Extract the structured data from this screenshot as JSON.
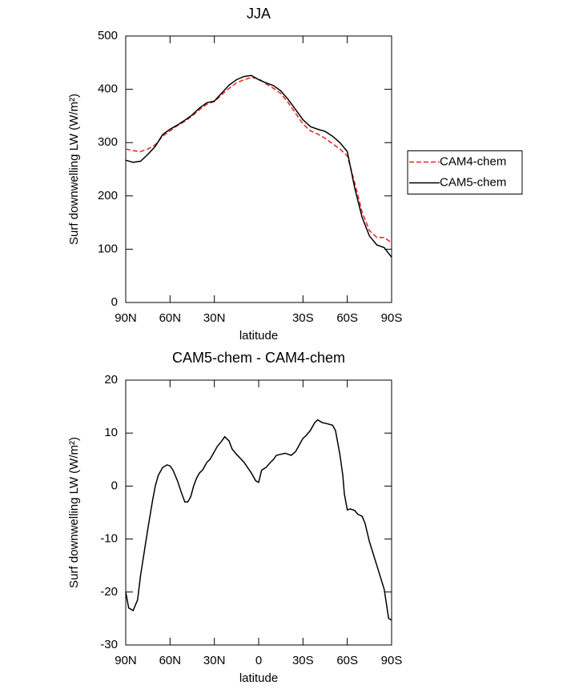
{
  "chart_data": [
    {
      "type": "line",
      "title": "JJA",
      "x_label": "latitude",
      "y_label": "Surf downwelling LW (W/m²)",
      "x": [
        90,
        85,
        80,
        75,
        70,
        65,
        60,
        55,
        50,
        45,
        40,
        35,
        30,
        25,
        20,
        15,
        10,
        5,
        0,
        -5,
        -10,
        -15,
        -20,
        -25,
        -30,
        -35,
        -40,
        -45,
        -50,
        -55,
        -60,
        -65,
        -70,
        -75,
        -80,
        -85,
        -90
      ],
      "series": [
        {
          "name": "CAM4-chem",
          "color": "#e8221f",
          "dash": true,
          "values": [
            288,
            285,
            283,
            288,
            296,
            312,
            322,
            332,
            340,
            350,
            362,
            372,
            377,
            390,
            402,
            412,
            418,
            422,
            420,
            410,
            402,
            392,
            375,
            355,
            335,
            322,
            316,
            308,
            298,
            288,
            275,
            225,
            170,
            135,
            122,
            122,
            112
          ]
        },
        {
          "name": "CAM5-chem",
          "color": "#000000",
          "dash": false,
          "values": [
            267,
            263,
            265,
            278,
            293,
            315,
            325,
            333,
            342,
            352,
            365,
            375,
            378,
            393,
            408,
            418,
            424,
            426,
            418,
            412,
            407,
            397,
            381,
            362,
            343,
            330,
            325,
            321,
            312,
            300,
            283,
            215,
            160,
            125,
            108,
            103,
            85
          ]
        }
      ],
      "xlim": [
        90,
        -90
      ],
      "xticks": [
        {
          "value": 90,
          "label": "90N"
        },
        {
          "value": 60,
          "label": "60N"
        },
        {
          "value": 30,
          "label": "30N"
        },
        {
          "value": -30,
          "label": "30S"
        },
        {
          "value": -60,
          "label": "60S"
        },
        {
          "value": -90,
          "label": "90S"
        }
      ],
      "ylim": [
        0,
        500
      ],
      "yticks": [
        0,
        100,
        200,
        300,
        400,
        500
      ],
      "legend": "right"
    },
    {
      "type": "line",
      "title": "CAM5-chem - CAM4-chem",
      "x_label": "latitude",
      "y_label": "Surf downwelling LW (W/m²)",
      "x": [
        90,
        88,
        85,
        82,
        80,
        75,
        72,
        70,
        68,
        65,
        62,
        60,
        58,
        55,
        52,
        50,
        48,
        46,
        44,
        42,
        40,
        38,
        35,
        33,
        30,
        28,
        25,
        23,
        20,
        18,
        15,
        10,
        5,
        2,
        0,
        -2,
        -5,
        -8,
        -10,
        -12,
        -15,
        -18,
        -20,
        -22,
        -25,
        -28,
        -30,
        -32,
        -35,
        -38,
        -40,
        -43,
        -46,
        -50,
        -52,
        -55,
        -57,
        -58,
        -60,
        -62,
        -65,
        -67,
        -70,
        -72,
        -75,
        -80,
        -85,
        -88,
        -90
      ],
      "values": [
        -20,
        -23,
        -23.5,
        -21.5,
        -17,
        -8,
        -3,
        0,
        2,
        3.5,
        4,
        3.8,
        3,
        1,
        -1.5,
        -3,
        -3,
        -2,
        0,
        1.5,
        2.5,
        3,
        4.5,
        5,
        6.5,
        7.5,
        8.5,
        9.3,
        8.5,
        7,
        6,
        4.5,
        2.5,
        1,
        0.7,
        3,
        3.5,
        4.5,
        5,
        5.8,
        6,
        6.2,
        6,
        5.8,
        6.5,
        8,
        9,
        9.5,
        10.5,
        12,
        12.5,
        12,
        11.8,
        11.5,
        10.5,
        6,
        2,
        -1.5,
        -4.5,
        -4.3,
        -4.6,
        -5.3,
        -5.7,
        -7,
        -10.5,
        -15,
        -19.5,
        -25,
        -25.3
      ],
      "color": "#000000",
      "xlim": [
        90,
        -90
      ],
      "xticks": [
        {
          "value": 90,
          "label": "90N"
        },
        {
          "value": 60,
          "label": "60N"
        },
        {
          "value": 30,
          "label": "30N"
        },
        0,
        {
          "value": -30,
          "label": "30S"
        },
        {
          "value": -60,
          "label": "60S"
        },
        {
          "value": -90,
          "label": "90S"
        }
      ],
      "ylim": [
        -30,
        20
      ],
      "yticks": [
        -30,
        -20,
        -10,
        0,
        10,
        20
      ]
    }
  ]
}
